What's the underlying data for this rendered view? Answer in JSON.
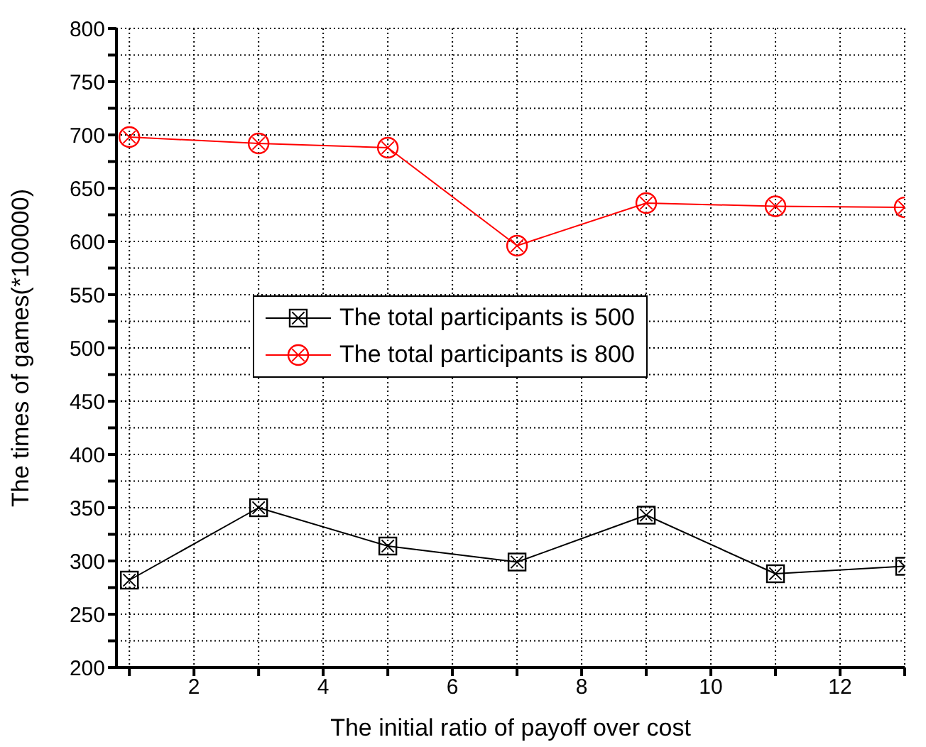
{
  "chart_data": {
    "type": "line",
    "xlabel": "The initial ratio of payoff over cost",
    "ylabel": "The times  of games(*100000)",
    "x": [
      1,
      3,
      5,
      7,
      9,
      11,
      13
    ],
    "series": [
      {
        "name": "The total participants is 500",
        "color": "#000000",
        "marker": "square",
        "values": [
          282,
          350,
          314,
          299,
          343,
          288,
          295
        ]
      },
      {
        "name": "The total participants is 800",
        "color": "#ff0000",
        "marker": "circle",
        "values": [
          698,
          692,
          688,
          596,
          636,
          633,
          632
        ]
      }
    ],
    "xlim": [
      0.8,
      13
    ],
    "xticks": [
      {
        "value": 1,
        "label": null
      },
      2,
      {
        "value": 3,
        "label": null
      },
      4,
      {
        "value": 5,
        "label": null
      },
      6,
      {
        "value": 7,
        "label": null
      },
      8,
      {
        "value": 9,
        "label": null
      },
      10,
      {
        "value": 11,
        "label": null
      },
      12,
      {
        "value": 13,
        "label": null
      }
    ],
    "ylim": [
      200,
      800
    ],
    "yticks": [
      200,
      {
        "value": 225,
        "label": null
      },
      250,
      {
        "value": 275,
        "label": null
      },
      300,
      {
        "value": 325,
        "label": null
      },
      350,
      {
        "value": 375,
        "label": null
      },
      400,
      {
        "value": 425,
        "label": null
      },
      450,
      {
        "value": 475,
        "label": null
      },
      500,
      {
        "value": 525,
        "label": null
      },
      550,
      {
        "value": 575,
        "label": null
      },
      600,
      {
        "value": 625,
        "label": null
      },
      650,
      {
        "value": 675,
        "label": null
      },
      700,
      {
        "value": 725,
        "label": null
      },
      750,
      {
        "value": 775,
        "label": null
      },
      800
    ],
    "grid": true,
    "legend": "center",
    "line_style": "solid"
  }
}
